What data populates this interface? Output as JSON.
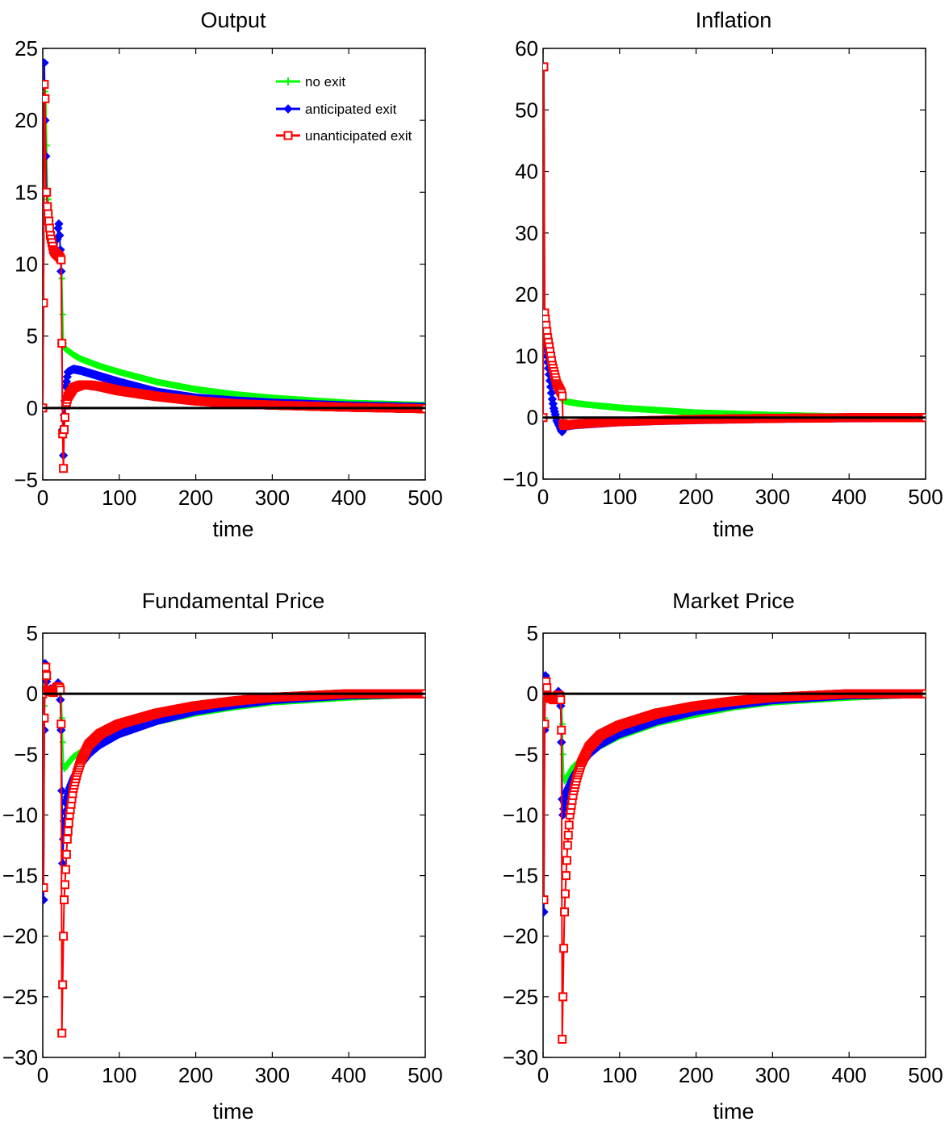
{
  "figure": {
    "background": "#ffffff",
    "series_styles": [
      {
        "key": "no_exit",
        "color": "#00ff00",
        "marker": "plus"
      },
      {
        "key": "anticipated",
        "color": "#0000ff",
        "marker": "diamond"
      },
      {
        "key": "unanticipated",
        "color": "#ff0000",
        "marker": "square"
      }
    ],
    "zero_line_color": "#000000"
  },
  "chart_data": [
    {
      "type": "line",
      "title": "Output",
      "xlabel": "time",
      "ylabel": "",
      "xlim": [
        0,
        500
      ],
      "ylim": [
        -5,
        25
      ],
      "xticks": [
        0,
        100,
        200,
        300,
        400,
        500
      ],
      "yticks": [
        -5,
        0,
        5,
        10,
        15,
        20,
        25
      ],
      "legend": {
        "placement": "top-right",
        "entries": [
          "no exit",
          "anticipated exit",
          "unanticipated exit"
        ]
      },
      "grid": false,
      "series": [
        {
          "name": "no exit",
          "x": [
            0,
            1,
            2,
            4,
            6,
            8,
            10,
            12,
            14,
            16,
            18,
            20,
            22,
            24,
            25,
            26,
            27,
            28,
            30,
            40,
            50,
            75,
            100,
            150,
            200,
            250,
            300,
            400,
            500
          ],
          "y": [
            0,
            7.3,
            22.5,
            21.5,
            15,
            14,
            13,
            12,
            11.5,
            11,
            10.8,
            10.8,
            10.7,
            10.5,
            9,
            6.5,
            4.5,
            4.2,
            4.1,
            3.7,
            3.4,
            2.9,
            2.5,
            1.8,
            1.3,
            0.95,
            0.7,
            0.35,
            0.2
          ]
        },
        {
          "name": "anticipated exit",
          "x": [
            0,
            1,
            2,
            3,
            4,
            5,
            6,
            7,
            8,
            10,
            12,
            14,
            16,
            18,
            20,
            21,
            22,
            23,
            24,
            25,
            26,
            27,
            28,
            30,
            33,
            40,
            50,
            75,
            100,
            150,
            200,
            250,
            300,
            400,
            500
          ],
          "y": [
            0,
            7.3,
            24,
            20,
            17.5,
            15,
            14,
            13.5,
            13,
            12,
            11.5,
            11,
            10.8,
            11,
            12.5,
            12.8,
            12,
            11,
            9.5,
            4.5,
            -1.5,
            -3.3,
            -0.5,
            1.5,
            2.5,
            2.7,
            2.6,
            2.2,
            1.8,
            1.1,
            0.7,
            0.5,
            0.35,
            0.15,
            0.05
          ]
        },
        {
          "name": "unanticipated exit",
          "x": [
            0,
            1,
            2,
            3,
            4,
            5,
            6,
            7,
            8,
            10,
            12,
            14,
            16,
            18,
            20,
            22,
            24,
            25,
            26,
            27,
            28,
            30,
            33,
            40,
            50,
            60,
            75,
            100,
            150,
            200,
            250,
            300,
            400,
            500
          ],
          "y": [
            0,
            7.3,
            22.5,
            21.5,
            15,
            15,
            14,
            13.5,
            13,
            12,
            11.5,
            11,
            10.8,
            10.7,
            10.6,
            10.5,
            10.3,
            4.5,
            -1.8,
            -4.2,
            -1.5,
            0.2,
            0.8,
            1.4,
            1.6,
            1.6,
            1.5,
            1.2,
            0.8,
            0.5,
            0.3,
            0.2,
            0.05,
            -0.05
          ]
        }
      ]
    },
    {
      "type": "line",
      "title": "Inflation",
      "xlabel": "time",
      "ylabel": "",
      "xlim": [
        0,
        500
      ],
      "ylim": [
        -10,
        60
      ],
      "xticks": [
        0,
        100,
        200,
        300,
        400,
        500
      ],
      "yticks": [
        -10,
        0,
        10,
        20,
        30,
        40,
        50,
        60
      ],
      "grid": false,
      "series": [
        {
          "name": "no exit",
          "x": [
            0,
            1,
            2,
            3,
            4,
            6,
            8,
            10,
            12,
            14,
            16,
            18,
            20,
            22,
            24,
            25,
            26,
            28,
            30,
            40,
            50,
            75,
            100,
            150,
            200,
            250,
            300,
            400,
            500
          ],
          "y": [
            0,
            57,
            16,
            15,
            14,
            12,
            10,
            8.5,
            7.5,
            6.5,
            5.5,
            5,
            4.5,
            4,
            3.5,
            3,
            2.8,
            2.7,
            2.6,
            2.4,
            2.2,
            1.9,
            1.6,
            1.2,
            0.8,
            0.6,
            0.4,
            0.15,
            0
          ]
        },
        {
          "name": "anticipated exit",
          "x": [
            0,
            1,
            2,
            3,
            4,
            6,
            8,
            10,
            12,
            14,
            16,
            18,
            20,
            22,
            24,
            25,
            26,
            28,
            30,
            40,
            50,
            75,
            100,
            150,
            200,
            300,
            400,
            500
          ],
          "y": [
            0,
            57,
            13,
            12,
            11,
            9,
            7,
            5,
            3,
            1.5,
            0.5,
            -0.5,
            -1,
            -1.5,
            -2.2,
            -2.3,
            -2,
            -1.6,
            -1.4,
            -1.2,
            -1.1,
            -0.9,
            -0.7,
            -0.5,
            -0.35,
            -0.15,
            -0.05,
            0
          ]
        },
        {
          "name": "unanticipated exit",
          "x": [
            0,
            1,
            2,
            3,
            4,
            6,
            8,
            10,
            12,
            14,
            16,
            18,
            20,
            22,
            24,
            25,
            26,
            28,
            30,
            40,
            50,
            75,
            100,
            150,
            200,
            300,
            400,
            500
          ],
          "y": [
            0,
            57,
            17,
            16,
            15,
            13,
            11.5,
            10,
            8.5,
            7.5,
            6.5,
            5.5,
            5,
            4.5,
            4,
            3.5,
            -1,
            -1.3,
            -1.2,
            -1.1,
            -1,
            -0.8,
            -0.65,
            -0.45,
            -0.3,
            -0.12,
            -0.02,
            0
          ]
        }
      ]
    },
    {
      "type": "line",
      "title": "Fundamental Price",
      "xlabel": "time",
      "ylabel": "",
      "xlim": [
        0,
        500
      ],
      "ylim": [
        -30,
        5
      ],
      "xticks": [
        0,
        100,
        200,
        300,
        400,
        500
      ],
      "yticks": [
        -30,
        -25,
        -20,
        -15,
        -10,
        -5,
        0,
        5
      ],
      "grid": false,
      "series": [
        {
          "name": "no exit",
          "x": [
            0,
            1,
            2,
            3,
            4,
            6,
            8,
            10,
            12,
            14,
            16,
            18,
            20,
            22,
            24,
            25,
            26,
            27,
            28,
            30,
            40,
            50,
            60,
            75,
            100,
            150,
            200,
            250,
            300,
            400,
            500
          ],
          "y": [
            0,
            -16,
            -1,
            2,
            2.2,
            0.5,
            0,
            0.2,
            0.4,
            0.3,
            0.2,
            0.5,
            0.7,
            0.6,
            0.3,
            -2,
            -4,
            -5.8,
            -6.2,
            -6,
            -5.2,
            -4.8,
            -4.4,
            -3.9,
            -3.2,
            -2.3,
            -1.6,
            -1.1,
            -0.7,
            -0.3,
            -0.05
          ]
        },
        {
          "name": "anticipated exit",
          "x": [
            0,
            1,
            2,
            3,
            4,
            5,
            6,
            8,
            10,
            12,
            14,
            16,
            18,
            20,
            21,
            22,
            23,
            24,
            25,
            26,
            27,
            28,
            30,
            35,
            40,
            50,
            60,
            75,
            100,
            150,
            200,
            250,
            300,
            400,
            500
          ],
          "y": [
            0,
            -17,
            -3,
            2.5,
            2.4,
            1,
            0.2,
            0.3,
            0.4,
            0.3,
            0.2,
            0.4,
            0.7,
            0.9,
            0.8,
            0.5,
            -0.5,
            -3,
            -8,
            -14,
            -12,
            -10.5,
            -9,
            -7.8,
            -7,
            -5.8,
            -5,
            -4.2,
            -3.3,
            -2.2,
            -1.4,
            -0.9,
            -0.5,
            -0.1,
            0
          ]
        },
        {
          "name": "unanticipated exit",
          "x": [
            0,
            1,
            2,
            3,
            4,
            5,
            6,
            8,
            10,
            12,
            14,
            16,
            18,
            20,
            22,
            23,
            24,
            25,
            26,
            27,
            28,
            30,
            32,
            35,
            40,
            45,
            50,
            60,
            75,
            100,
            150,
            200,
            250,
            300,
            400,
            500
          ],
          "y": [
            0,
            -16,
            -2,
            2,
            2.2,
            1.5,
            0.3,
            0.2,
            0.3,
            0.2,
            0.1,
            0.3,
            0.5,
            0.6,
            0.5,
            0.3,
            -2.5,
            -28,
            -24,
            -20,
            -17,
            -14.5,
            -12,
            -10,
            -7.8,
            -6.5,
            -5.5,
            -4.2,
            -3.3,
            -2.5,
            -1.6,
            -1,
            -0.6,
            -0.3,
            0,
            0
          ]
        }
      ]
    },
    {
      "type": "line",
      "title": "Market Price",
      "xlabel": "time",
      "ylabel": "",
      "xlim": [
        0,
        500
      ],
      "ylim": [
        -30,
        5
      ],
      "xticks": [
        0,
        100,
        200,
        300,
        400,
        500
      ],
      "yticks": [
        -30,
        -25,
        -20,
        -15,
        -10,
        -5,
        0,
        5
      ],
      "grid": false,
      "series": [
        {
          "name": "no exit",
          "x": [
            0,
            1,
            2,
            3,
            4,
            6,
            8,
            10,
            12,
            14,
            16,
            18,
            20,
            22,
            24,
            25,
            26,
            27,
            28,
            30,
            40,
            50,
            60,
            75,
            100,
            150,
            200,
            250,
            300,
            400,
            500
          ],
          "y": [
            0,
            -17,
            -2,
            1.2,
            1,
            0,
            -0.5,
            -0.3,
            -0.2,
            -0.3,
            -0.4,
            -0.2,
            0,
            -0.1,
            -0.3,
            -2.5,
            -5,
            -6.8,
            -7.2,
            -7,
            -6,
            -5.4,
            -4.9,
            -4.3,
            -3.5,
            -2.4,
            -1.7,
            -1.1,
            -0.7,
            -0.3,
            -0.05
          ]
        },
        {
          "name": "anticipated exit",
          "x": [
            0,
            1,
            2,
            3,
            4,
            5,
            6,
            8,
            10,
            12,
            14,
            16,
            18,
            20,
            21,
            22,
            23,
            24,
            25,
            26,
            27,
            28,
            30,
            35,
            40,
            50,
            60,
            75,
            100,
            150,
            200,
            250,
            300,
            400,
            500
          ],
          "y": [
            0,
            -18,
            -3,
            1.5,
            1.3,
            0.3,
            -0.3,
            -0.4,
            -0.3,
            -0.4,
            -0.5,
            -0.3,
            0,
            0.2,
            0.1,
            -0.2,
            -1,
            -4,
            -8.7,
            -10,
            -9.5,
            -9,
            -8.2,
            -7.5,
            -6.8,
            -5.8,
            -5,
            -4.2,
            -3.3,
            -2.2,
            -1.4,
            -0.9,
            -0.5,
            -0.1,
            0
          ]
        },
        {
          "name": "unanticipated exit",
          "x": [
            0,
            1,
            2,
            3,
            4,
            5,
            6,
            8,
            10,
            12,
            14,
            16,
            18,
            20,
            22,
            23,
            24,
            25,
            26,
            27,
            28,
            30,
            32,
            35,
            40,
            45,
            50,
            60,
            75,
            100,
            150,
            200,
            250,
            300,
            400,
            500
          ],
          "y": [
            0,
            -17,
            -2.5,
            1,
            1,
            0.5,
            -0.2,
            -0.4,
            -0.3,
            -0.4,
            -0.5,
            -0.4,
            -0.2,
            -0.1,
            -0.2,
            -0.5,
            -3,
            -28.5,
            -25,
            -21,
            -18,
            -15,
            -12.5,
            -10,
            -8,
            -6.7,
            -5.7,
            -4.4,
            -3.4,
            -2.6,
            -1.6,
            -1,
            -0.6,
            -0.3,
            0,
            0
          ]
        }
      ]
    }
  ]
}
